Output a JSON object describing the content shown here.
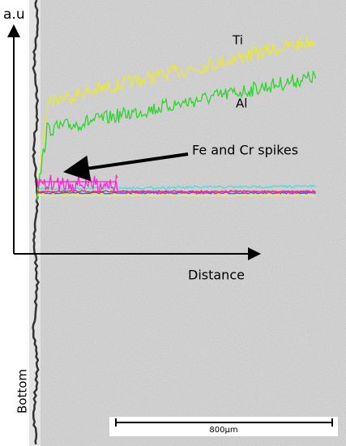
{
  "axis": {
    "y_label": "a.u",
    "x_label": "Distance"
  },
  "traces": {
    "ti_label": "Ti",
    "al_label": "Al"
  },
  "annotation": "Fe and Cr spikes",
  "side_label": "Bottom",
  "scale_bar": "800µm"
}
